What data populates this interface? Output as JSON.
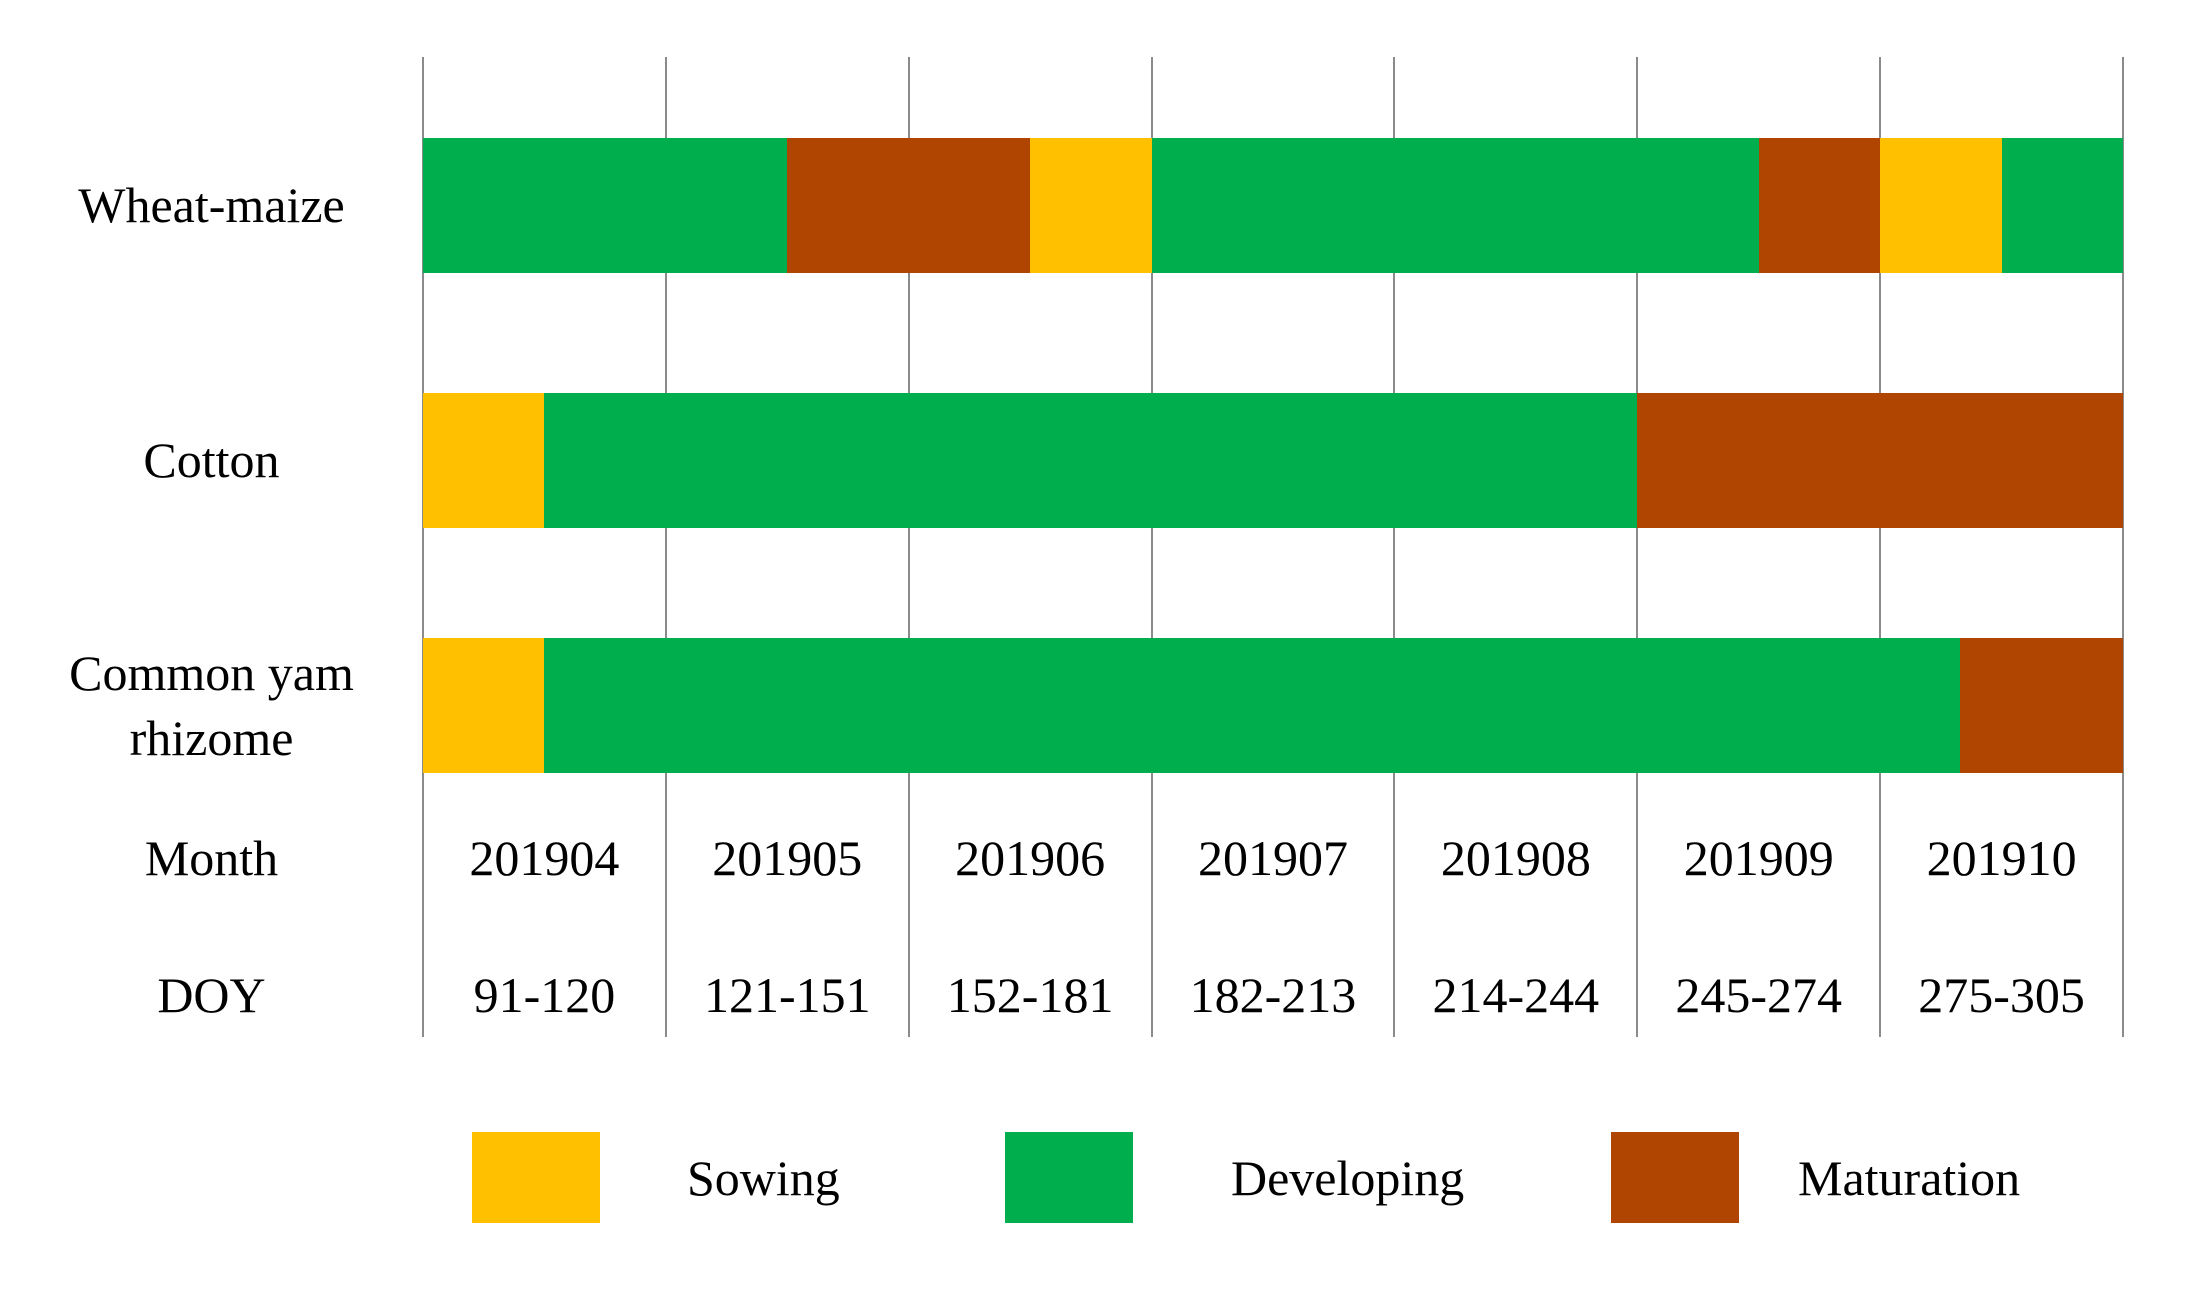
{
  "chart_data": {
    "type": "bar",
    "subtype": "horizontal-stacked-crop-calendar",
    "title": "",
    "grid": true,
    "legend_position": "bottom",
    "x_axis": {
      "month_label": "Month",
      "doy_label": "DOY",
      "months": [
        "201904",
        "201905",
        "201906",
        "201907",
        "201908",
        "201909",
        "201910"
      ],
      "doy": [
        "91-120",
        "121-151",
        "152-181",
        "182-213",
        "214-244",
        "245-274",
        "275-305"
      ],
      "columns": 7
    },
    "rows": [
      {
        "label": "Wheat-maize",
        "label_lines": [
          "Wheat-maize"
        ],
        "segments": [
          {
            "stage": "Developing",
            "start": 0,
            "end": 1.5
          },
          {
            "stage": "Maturation",
            "start": 1.5,
            "end": 2.5
          },
          {
            "stage": "Sowing",
            "start": 2.5,
            "end": 3
          },
          {
            "stage": "Developing",
            "start": 3,
            "end": 5.5
          },
          {
            "stage": "Maturation",
            "start": 5.5,
            "end": 6
          },
          {
            "stage": "Sowing",
            "start": 6,
            "end": 6.5
          },
          {
            "stage": "Developing",
            "start": 6.5,
            "end": 7
          }
        ]
      },
      {
        "label": "Cotton",
        "label_lines": [
          "Cotton"
        ],
        "segments": [
          {
            "stage": "Sowing",
            "start": 0,
            "end": 0.5
          },
          {
            "stage": "Developing",
            "start": 0.5,
            "end": 5
          },
          {
            "stage": "Maturation",
            "start": 5,
            "end": 7
          }
        ]
      },
      {
        "label": "Common yam rhizome",
        "label_lines": [
          "Common yam",
          "rhizome"
        ],
        "segments": [
          {
            "stage": "Sowing",
            "start": 0,
            "end": 0.5
          },
          {
            "stage": "Developing",
            "start": 0.5,
            "end": 6.33
          },
          {
            "stage": "Maturation",
            "start": 6.33,
            "end": 7
          }
        ]
      }
    ],
    "legend": [
      {
        "label": "Sowing",
        "color": "#FFC000"
      },
      {
        "label": "Developing",
        "color": "#00AE4E"
      },
      {
        "label": "Maturation",
        "color": "#B04502"
      }
    ],
    "stage_colors": {
      "Sowing": "#FFC000",
      "Developing": "#00AE4E",
      "Maturation": "#B04502"
    },
    "gridline_color": "#8b8b8b"
  }
}
